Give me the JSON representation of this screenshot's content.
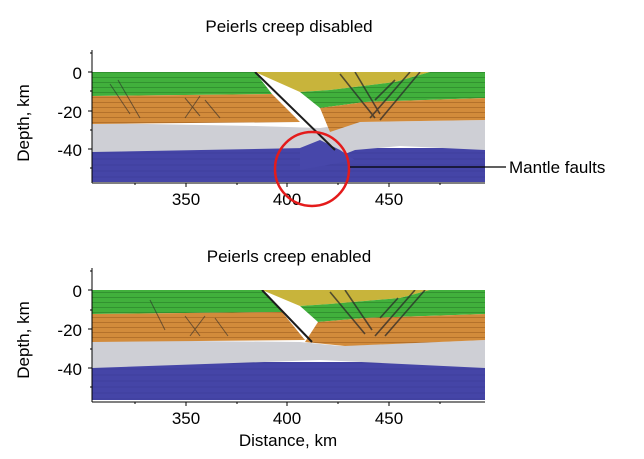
{
  "panels": [
    {
      "title": "Peierls creep disabled",
      "ylabel": "Depth, km",
      "yticks": [
        "0",
        "-20",
        "-40"
      ],
      "xticks": [
        "350",
        "400",
        "450"
      ],
      "annotation": "Mantle faults"
    },
    {
      "title": "Peierls creep enabled",
      "ylabel": "Depth, km",
      "yticks": [
        "0",
        "-20",
        "-40"
      ],
      "xticks": [
        "350",
        "400",
        "450"
      ],
      "xlabel": "Distance, km"
    }
  ],
  "colors": {
    "upper_crust_green": "#3fae3a",
    "middle_crust_orange": "#d18a3a",
    "lower_crust_gray": "#cfcfd4",
    "mantle_blue": "#4646a8",
    "sediment_yellow": "#c9b43a",
    "highlight_circle": "#e41b1b"
  }
}
